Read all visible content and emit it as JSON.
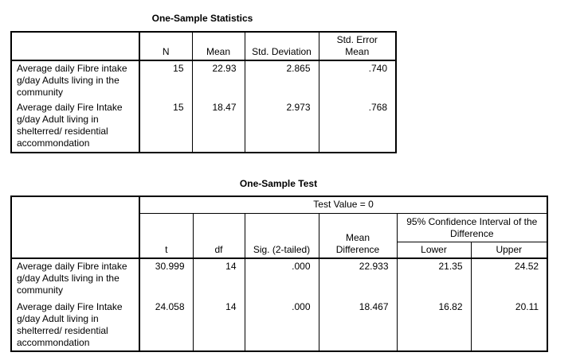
{
  "stats": {
    "title": "One-Sample Statistics",
    "headers": [
      "N",
      "Mean",
      "Std. Deviation",
      "Std. Error Mean"
    ],
    "rows": [
      {
        "label": "Average daily Fibre intake g/day Adults living in the community",
        "n": "15",
        "mean": "22.93",
        "sd": "2.865",
        "se": ".740"
      },
      {
        "label": "Average daily Fire Intake g/day Adult living in shelterred/ residential accommondation",
        "n": "15",
        "mean": "18.47",
        "sd": "2.973",
        "se": ".768"
      }
    ]
  },
  "test": {
    "title": "One-Sample Test",
    "test_value": "Test Value = 0",
    "headers": [
      "t",
      "df",
      "Sig. (2-tailed)",
      "Mean Difference"
    ],
    "ci_header": "95% Confidence Interval of the Difference",
    "ci_sub": [
      "Lower",
      "Upper"
    ],
    "rows": [
      {
        "label": "Average daily Fibre intake g/day Adults living in the community",
        "t": "30.999",
        "df": "14",
        "sig": ".000",
        "md": "22.933",
        "lower": "21.35",
        "upper": "24.52"
      },
      {
        "label": "Average daily Fire Intake g/day Adult living in shelterred/ residential accommondation",
        "t": "24.058",
        "df": "14",
        "sig": ".000",
        "md": "18.467",
        "lower": "16.82",
        "upper": "20.11"
      }
    ]
  }
}
